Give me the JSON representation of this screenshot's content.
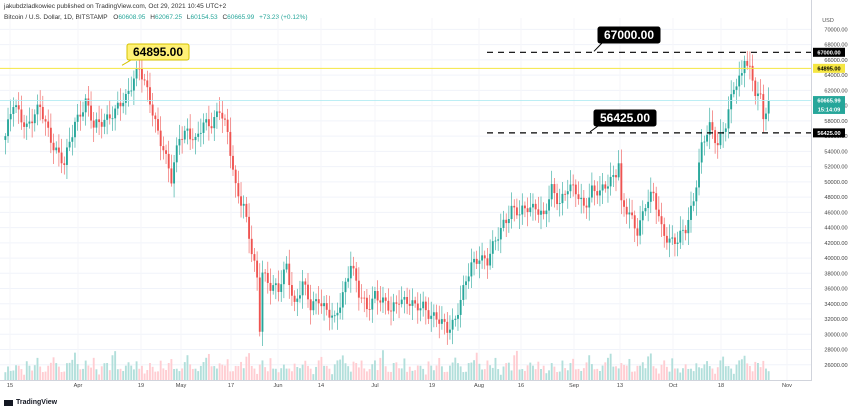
{
  "header": {
    "publisher_line": "jakubdzladkowiec published on TradingView.com, Oct 29, 2021 10:45 UTC+2",
    "symbol": "Bitcoin / U.S. Dollar, 1D, BITSTAMP",
    "o_label": "O",
    "o_value": "60608.95",
    "h_label": "H",
    "h_value": "62067.25",
    "l_label": "L",
    "l_value": "60154.53",
    "c_label": "C",
    "c_value": "60665.99",
    "change": "+73.23 (+0.12%)"
  },
  "brand": {
    "logo_text": "TradingView"
  },
  "colors": {
    "up": "#26a69a",
    "down": "#ef5350",
    "resistance_line": "#f5e642",
    "callout_yellow": "#fff176",
    "callout_black": "#000000",
    "last_price": "#26a69a"
  },
  "chart_data": {
    "type": "candlestick",
    "currency_label": "USD",
    "ylim": [
      24000,
      71500
    ],
    "y_ticks": [
      "26000.00",
      "28000.00",
      "30000.00",
      "32000.00",
      "34000.00",
      "36000.00",
      "38000.00",
      "40000.00",
      "42000.00",
      "44000.00",
      "46000.00",
      "48000.00",
      "50000.00",
      "52000.00",
      "54000.00",
      "56000.00",
      "58000.00",
      "60000.00",
      "62000.00",
      "64000.00",
      "66000.00",
      "68000.00",
      "70000.00"
    ],
    "x_ticks": [
      "15",
      "Apr",
      "19",
      "May",
      "17",
      "Jun",
      "14",
      "Jul",
      "19",
      "Aug",
      "16",
      "Sep",
      "13",
      "Oct",
      "18",
      "Nov"
    ],
    "anchors": [
      [
        0,
        56000
      ],
      [
        3,
        60000
      ],
      [
        8,
        57500
      ],
      [
        13,
        59500
      ],
      [
        18,
        55000
      ],
      [
        22,
        52000
      ],
      [
        26,
        58000
      ],
      [
        30,
        60500
      ],
      [
        33,
        57000
      ],
      [
        37,
        58500
      ],
      [
        41,
        59000
      ],
      [
        45,
        61000
      ],
      [
        48,
        64000
      ],
      [
        50,
        64895
      ],
      [
        53,
        61500
      ],
      [
        56,
        58000
      ],
      [
        59,
        54500
      ],
      [
        62,
        50000
      ],
      [
        65,
        56000
      ],
      [
        68,
        57000
      ],
      [
        71,
        55000
      ],
      [
        74,
        57500
      ],
      [
        77,
        58000
      ],
      [
        80,
        59500
      ],
      [
        83,
        56000
      ],
      [
        86,
        49500
      ],
      [
        89,
        47000
      ],
      [
        92,
        40500
      ],
      [
        94,
        37000
      ],
      [
        95,
        31000
      ],
      [
        96,
        38500
      ],
      [
        99,
        36500
      ],
      [
        102,
        35500
      ],
      [
        105,
        39000
      ],
      [
        108,
        34000
      ],
      [
        111,
        36500
      ],
      [
        114,
        33500
      ],
      [
        117,
        35000
      ],
      [
        120,
        33000
      ],
      [
        123,
        31500
      ],
      [
        126,
        35500
      ],
      [
        129,
        39500
      ],
      [
        132,
        35000
      ],
      [
        135,
        33500
      ],
      [
        138,
        35500
      ],
      [
        141,
        34000
      ],
      [
        144,
        33000
      ],
      [
        147,
        35000
      ],
      [
        150,
        34200
      ],
      [
        153,
        33300
      ],
      [
        156,
        34000
      ],
      [
        159,
        32500
      ],
      [
        162,
        31500
      ],
      [
        165,
        30800
      ],
      [
        168,
        32200
      ],
      [
        171,
        35500
      ],
      [
        174,
        39000
      ],
      [
        177,
        40500
      ],
      [
        180,
        39500
      ],
      [
        183,
        42000
      ],
      [
        186,
        44800
      ],
      [
        189,
        46500
      ],
      [
        192,
        45500
      ],
      [
        195,
        46800
      ],
      [
        198,
        47000
      ],
      [
        201,
        45000
      ],
      [
        204,
        49000
      ],
      [
        207,
        47600
      ],
      [
        210,
        49200
      ],
      [
        213,
        48500
      ],
      [
        216,
        47000
      ],
      [
        219,
        49000
      ],
      [
        222,
        48200
      ],
      [
        225,
        50000
      ],
      [
        228,
        51500
      ],
      [
        229,
        52700
      ],
      [
        230,
        46800
      ],
      [
        233,
        45500
      ],
      [
        236,
        43800
      ],
      [
        239,
        47200
      ],
      [
        242,
        48000
      ],
      [
        245,
        44000
      ],
      [
        248,
        42500
      ],
      [
        251,
        42000
      ],
      [
        254,
        43800
      ],
      [
        257,
        48000
      ],
      [
        260,
        54500
      ],
      [
        263,
        57000
      ],
      [
        266,
        55300
      ],
      [
        269,
        57700
      ],
      [
        272,
        62000
      ],
      [
        275,
        64100
      ],
      [
        276,
        66800
      ],
      [
        278,
        64900
      ],
      [
        280,
        61700
      ],
      [
        282,
        60500
      ],
      [
        283,
        58200
      ],
      [
        285,
        60665.99
      ]
    ],
    "volume_series": [
      3,
      4,
      2,
      3,
      5,
      4,
      3,
      2,
      6,
      4,
      3,
      5,
      7,
      4,
      3,
      2,
      4,
      6,
      8,
      5,
      4,
      3,
      2,
      5,
      6,
      7,
      9,
      5,
      4,
      3,
      6,
      5,
      4,
      7,
      3,
      2,
      4,
      5,
      6,
      3,
      8,
      10,
      4,
      3,
      2,
      5,
      6,
      4,
      3,
      7
    ],
    "series": [
      {
        "name": "",
        "closes_end": 60665.99
      }
    ],
    "horizontal_lines": [
      {
        "name": "resistance",
        "value": 64895,
        "color": "#f5e642"
      },
      {
        "name": "ath",
        "value": 67000,
        "dashed": true
      },
      {
        "name": "support",
        "value": 56425,
        "dashed": true
      }
    ],
    "annotations": [
      {
        "label": "64895.00",
        "style": "yellow"
      },
      {
        "label": "67000.00",
        "style": "black"
      },
      {
        "label": "56425.00",
        "style": "black"
      }
    ],
    "axis_badges": [
      {
        "label": "67000.00",
        "value": 67000,
        "style": "black"
      },
      {
        "label": "64895.00",
        "value": 64895,
        "style": "yellow"
      },
      {
        "label": "60665.99",
        "value": 60665.99,
        "style": "green"
      },
      {
        "label": "15:14:09",
        "value": 59500,
        "style": "green"
      },
      {
        "label": "56425.00",
        "value": 56425,
        "style": "black"
      }
    ]
  }
}
